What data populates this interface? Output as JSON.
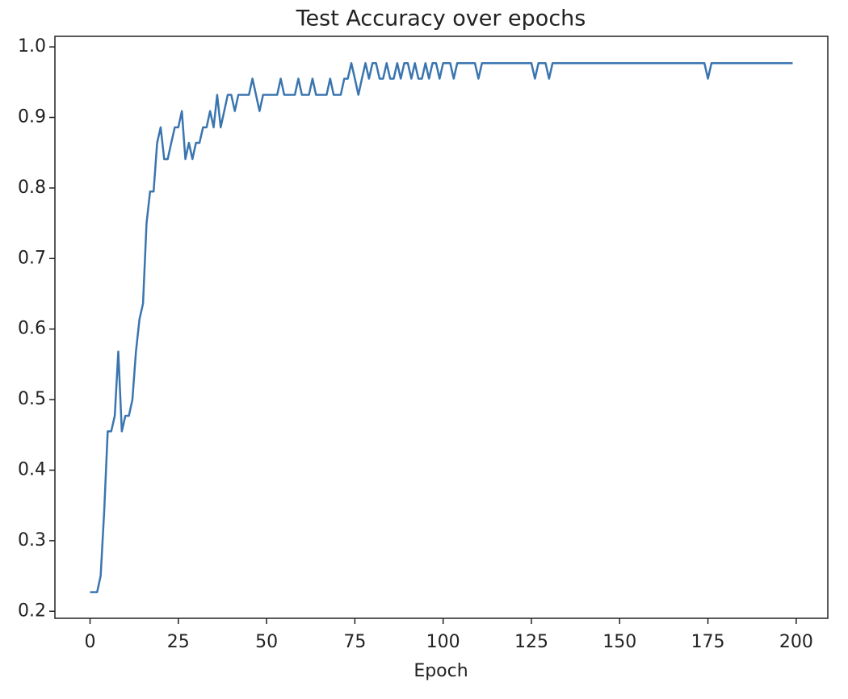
{
  "chart_data": {
    "type": "line",
    "title": "Test Accuracy over epochs",
    "xlabel": "Epoch",
    "x": [
      0,
      1,
      2,
      3,
      4,
      5,
      6,
      7,
      8,
      9,
      10,
      11,
      12,
      13,
      14,
      15,
      16,
      17,
      18,
      19,
      20,
      21,
      22,
      23,
      24,
      25,
      26,
      27,
      28,
      29,
      30,
      31,
      32,
      33,
      34,
      35,
      36,
      37,
      38,
      39,
      40,
      41,
      42,
      43,
      44,
      45,
      46,
      47,
      48,
      49,
      50,
      51,
      52,
      53,
      54,
      55,
      56,
      57,
      58,
      59,
      60,
      61,
      62,
      63,
      64,
      65,
      66,
      67,
      68,
      69,
      70,
      71,
      72,
      73,
      74,
      75,
      76,
      77,
      78,
      79,
      80,
      81,
      82,
      83,
      84,
      85,
      86,
      87,
      88,
      89,
      90,
      91,
      92,
      93,
      94,
      95,
      96,
      97,
      98,
      99,
      100,
      101,
      102,
      103,
      104,
      105,
      106,
      107,
      108,
      109,
      110,
      111,
      112,
      113,
      114,
      115,
      116,
      117,
      118,
      119,
      120,
      121,
      122,
      123,
      124,
      125,
      126,
      127,
      128,
      129,
      130,
      131,
      132,
      133,
      134,
      135,
      136,
      137,
      138,
      139,
      140,
      141,
      142,
      143,
      144,
      145,
      146,
      147,
      148,
      149,
      150,
      151,
      152,
      153,
      154,
      155,
      156,
      157,
      158,
      159,
      160,
      161,
      162,
      163,
      164,
      165,
      166,
      167,
      168,
      169,
      170,
      171,
      172,
      173,
      174,
      175,
      176,
      177,
      178,
      179,
      180,
      181,
      182,
      183,
      184,
      185,
      186,
      187,
      188,
      189,
      190,
      191,
      192,
      193,
      194,
      195,
      196,
      197,
      198,
      199
    ],
    "series": [
      {
        "color": "#3a75b0",
        "values": [
          0.227,
          0.227,
          0.227,
          0.25,
          0.341,
          0.455,
          0.455,
          0.477,
          0.568,
          0.455,
          0.477,
          0.477,
          0.5,
          0.568,
          0.614,
          0.636,
          0.75,
          0.795,
          0.795,
          0.864,
          0.886,
          0.841,
          0.841,
          0.864,
          0.886,
          0.886,
          0.909,
          0.841,
          0.864,
          0.841,
          0.864,
          0.864,
          0.886,
          0.886,
          0.909,
          0.886,
          0.932,
          0.886,
          0.909,
          0.932,
          0.932,
          0.909,
          0.932,
          0.932,
          0.932,
          0.932,
          0.955,
          0.932,
          0.909,
          0.932,
          0.932,
          0.932,
          0.932,
          0.932,
          0.955,
          0.932,
          0.932,
          0.932,
          0.932,
          0.955,
          0.932,
          0.932,
          0.932,
          0.955,
          0.932,
          0.932,
          0.932,
          0.932,
          0.955,
          0.932,
          0.932,
          0.932,
          0.955,
          0.955,
          0.977,
          0.955,
          0.932,
          0.955,
          0.977,
          0.955,
          0.977,
          0.977,
          0.955,
          0.955,
          0.977,
          0.955,
          0.955,
          0.977,
          0.955,
          0.977,
          0.977,
          0.955,
          0.977,
          0.955,
          0.955,
          0.977,
          0.955,
          0.977,
          0.977,
          0.955,
          0.977,
          0.977,
          0.977,
          0.955,
          0.977,
          0.977,
          0.977,
          0.977,
          0.977,
          0.977,
          0.955,
          0.977,
          0.977,
          0.977,
          0.977,
          0.977,
          0.977,
          0.977,
          0.977,
          0.977,
          0.977,
          0.977,
          0.977,
          0.977,
          0.977,
          0.977,
          0.955,
          0.977,
          0.977,
          0.977,
          0.955,
          0.977,
          0.977,
          0.977,
          0.977,
          0.977,
          0.977,
          0.977,
          0.977,
          0.977,
          0.977,
          0.977,
          0.977,
          0.977,
          0.977,
          0.977,
          0.977,
          0.977,
          0.977,
          0.977,
          0.977,
          0.977,
          0.977,
          0.977,
          0.977,
          0.977,
          0.977,
          0.977,
          0.977,
          0.977,
          0.977,
          0.977,
          0.977,
          0.977,
          0.977,
          0.977,
          0.977,
          0.977,
          0.977,
          0.977,
          0.977,
          0.977,
          0.977,
          0.977,
          0.977,
          0.955,
          0.977,
          0.977,
          0.977,
          0.977,
          0.977,
          0.977,
          0.977,
          0.977,
          0.977,
          0.977,
          0.977,
          0.977,
          0.977,
          0.977,
          0.977,
          0.977,
          0.977,
          0.977,
          0.977,
          0.977,
          0.977,
          0.977,
          0.977,
          0.977
        ]
      }
    ],
    "xlim": [
      -9.95,
      208.95
    ],
    "ylim": [
      0.19,
      1.015
    ],
    "xticks": [
      0,
      25,
      50,
      75,
      100,
      125,
      150,
      175,
      200
    ],
    "yticks": [
      0.2,
      0.3,
      0.4,
      0.5,
      0.6,
      0.7,
      0.8,
      0.9,
      {
        "value": 1,
        "label": "1.0"
      }
    ],
    "grid": false
  }
}
